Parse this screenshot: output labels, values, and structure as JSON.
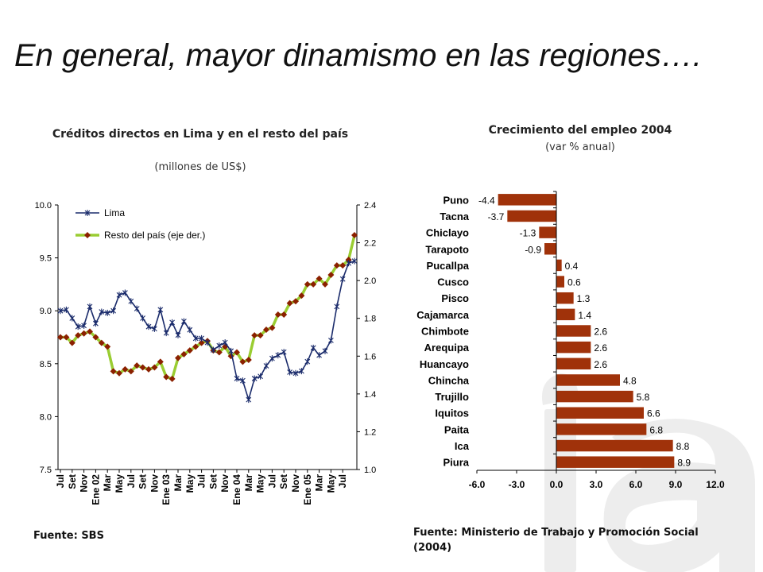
{
  "title": "En general, mayor dinamismo en las regiones….",
  "chart_data": [
    {
      "type": "line",
      "title": "Créditos directos en Lima y en el resto del país",
      "subtitle": "(millones de US$)",
      "source": "Fuente: SBS",
      "x_tick_labels": [
        "Jul",
        "Set",
        "Nov",
        "Ene 02",
        "Mar",
        "May",
        "Jul",
        "Set",
        "Nov",
        "Ene 03",
        "Mar",
        "May",
        "Jul",
        "Set",
        "Nov",
        "Ene 04",
        "Mar",
        "May",
        "Jul",
        "Set",
        "Nov",
        "Ene 05",
        "Mar",
        "May",
        "Jul"
      ],
      "y_left": {
        "range": [
          7.5,
          10.0
        ],
        "ticks": [
          "7.5",
          "8.0",
          "8.5",
          "9.0",
          "9.5",
          "10.0"
        ]
      },
      "y_right": {
        "range": [
          1.0,
          2.4
        ],
        "ticks": [
          "1.0",
          "1.2",
          "1.4",
          "1.6",
          "1.8",
          "2.0",
          "2.2",
          "2.4"
        ]
      },
      "legend_position": "top-left",
      "series": [
        {
          "name": "Lima",
          "axis": "left",
          "color": "#1a2b6b",
          "marker": "star",
          "values": [
            9.0,
            9.01,
            8.93,
            8.85,
            8.86,
            9.04,
            8.88,
            8.99,
            8.98,
            9.0,
            9.15,
            9.17,
            9.09,
            9.02,
            8.93,
            8.85,
            8.83,
            9.01,
            8.79,
            8.89,
            8.77,
            8.9,
            8.82,
            8.74,
            8.74,
            8.7,
            8.63,
            8.67,
            8.7,
            8.62,
            8.36,
            8.34,
            8.16,
            8.36,
            8.38,
            8.48,
            8.55,
            8.58,
            8.61,
            8.42,
            8.41,
            8.43,
            8.52,
            8.65,
            8.58,
            8.62,
            8.72,
            9.04,
            9.3,
            9.45,
            9.47
          ]
        },
        {
          "name": "Resto del país (eje der.)",
          "axis": "right",
          "color": "#9acd32",
          "marker_color": "#8b2000",
          "marker": "diamond",
          "values": [
            1.7,
            1.7,
            1.67,
            1.71,
            1.72,
            1.73,
            1.7,
            1.67,
            1.65,
            1.52,
            1.51,
            1.53,
            1.52,
            1.55,
            1.54,
            1.53,
            1.54,
            1.57,
            1.49,
            1.48,
            1.59,
            1.61,
            1.63,
            1.65,
            1.67,
            1.68,
            1.63,
            1.62,
            1.65,
            1.6,
            1.62,
            1.57,
            1.58,
            1.71,
            1.71,
            1.74,
            1.75,
            1.82,
            1.82,
            1.88,
            1.89,
            1.92,
            1.98,
            1.98,
            2.01,
            1.98,
            2.03,
            2.08,
            2.08,
            2.11,
            2.24
          ]
        }
      ]
    },
    {
      "type": "bar",
      "orientation": "horizontal",
      "title": "Crecimiento del empleo 2004",
      "subtitle": "(var % anual)",
      "source": "Fuente: Ministerio de Trabajo y Promoción Social (2004)",
      "bar_color": "#a0320a",
      "categories": [
        "Puno",
        "Tacna",
        "Chiclayo",
        "Tarapoto",
        "Pucallpa",
        "Cusco",
        "Pisco",
        "Cajamarca",
        "Chimbote",
        "Arequipa",
        "Huancayo",
        "Chincha",
        "Trujillo",
        "Iquitos",
        "Paita",
        "Ica",
        "Piura"
      ],
      "values": [
        -4.4,
        -3.7,
        -1.3,
        -0.9,
        0.4,
        0.6,
        1.3,
        1.4,
        2.6,
        2.6,
        2.6,
        4.8,
        5.8,
        6.6,
        6.8,
        8.8,
        8.9
      ],
      "labels": [
        "-4.4",
        "-3.7",
        "-1.3",
        "-0.9",
        "0.4",
        "0.6",
        "1.3",
        "1.4",
        "2.6",
        "2.6",
        "2.6",
        "4.8",
        "5.8",
        "6.6",
        "6.8",
        "8.8",
        "8.9"
      ],
      "x_range": [
        -6.0,
        12.0
      ],
      "x_ticks": [
        "-6.0",
        "-3.0",
        "0.0",
        "3.0",
        "6.0",
        "9.0",
        "12.0"
      ]
    }
  ]
}
